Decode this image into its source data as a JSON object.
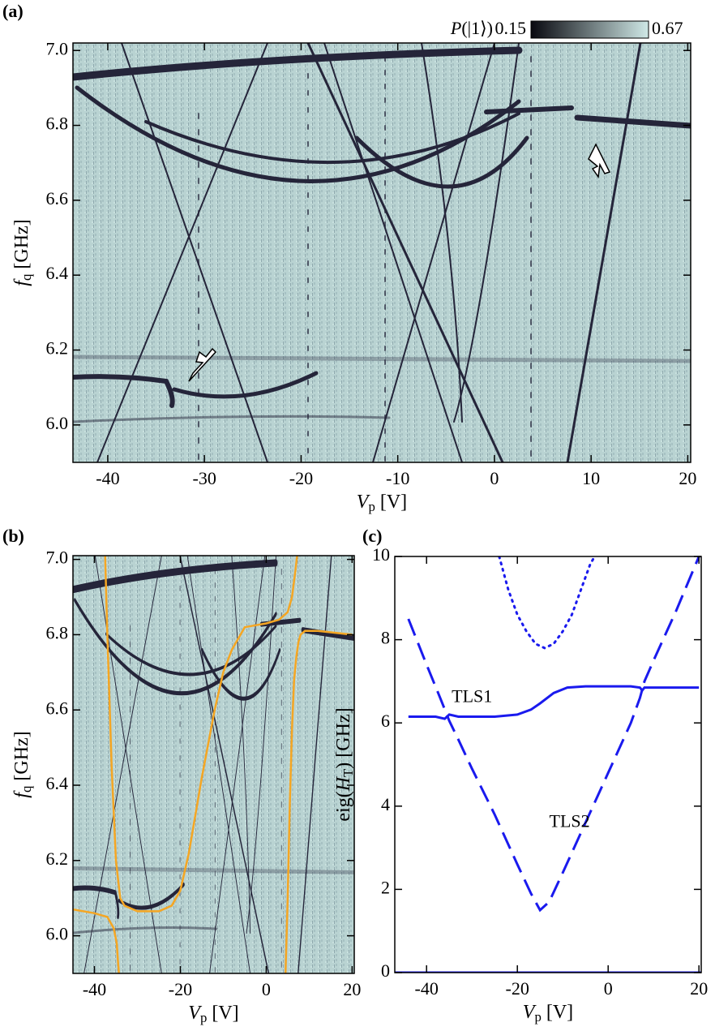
{
  "chart_data": [
    {
      "type": "heatmap",
      "panel_label": "(a)",
      "xlabel": [
        {
          "text": "V",
          "style": "italic"
        },
        {
          "text": "p",
          "style": "sub"
        },
        {
          "text": " [V]",
          "style": "normal"
        }
      ],
      "ylabel": [
        {
          "text": "f",
          "style": "italic"
        },
        {
          "text": "q",
          "style": "sub"
        },
        {
          "text": " [GHz]",
          "style": "normal"
        }
      ],
      "xlim": [
        -43.6,
        20.3
      ],
      "ylim": [
        5.9,
        7.02
      ],
      "xticks": [
        -40,
        -30,
        -20,
        -10,
        0,
        10,
        20
      ],
      "yticks": [
        {
          "value": 6,
          "label": "6.0"
        },
        6.2,
        6.4,
        6.6,
        6.8,
        {
          "value": 7,
          "label": "7.0"
        }
      ],
      "colorbar": {
        "label": [
          {
            "text": "P",
            "style": "italic"
          },
          {
            "text": "(|1⟩)",
            "style": "normal"
          }
        ],
        "ticks": [
          0.15,
          0.67
        ],
        "colors": [
          "#08080f",
          "#cfe8e6"
        ]
      }
    },
    {
      "type": "heatmap",
      "panel_label": "(b)",
      "xlabel": [
        {
          "text": "V",
          "style": "italic"
        },
        {
          "text": "p",
          "style": "sub"
        },
        {
          "text": " [V]",
          "style": "normal"
        }
      ],
      "ylabel": [
        {
          "text": "f",
          "style": "italic"
        },
        {
          "text": "q",
          "style": "sub"
        },
        {
          "text": " [GHz]",
          "style": "normal"
        }
      ],
      "xlim": [
        -45,
        20.5
      ],
      "ylim": [
        5.9,
        7.01
      ],
      "xticks": [
        -40,
        -20,
        0,
        20
      ],
      "yticks": [
        {
          "value": 6,
          "label": "6.0"
        },
        6.2,
        6.4,
        6.6,
        6.8,
        {
          "value": 7,
          "label": "7.0"
        }
      ],
      "series": [
        {
          "color": "#f5a623",
          "linestyle": "solid",
          "x": [
            -45,
            -40,
            -37,
            -35.5,
            -34.8,
            -34.5,
            -34.3
          ],
          "values": [
            6.07,
            6.06,
            6.05,
            6.02,
            5.98,
            5.93,
            5.9
          ]
        },
        {
          "color": "#f5a623",
          "linestyle": "solid",
          "x": [
            -37.5,
            -37,
            -36,
            -35,
            -34,
            -33,
            -30,
            -25,
            -22,
            -20,
            -18,
            -15,
            -12,
            -10,
            -8,
            -5,
            0,
            3,
            5,
            6,
            6.8,
            7.2
          ],
          "values": [
            7.01,
            6.8,
            6.45,
            6.2,
            6.1,
            6.08,
            6.065,
            6.065,
            6.08,
            6.12,
            6.22,
            6.42,
            6.6,
            6.7,
            6.76,
            6.82,
            6.83,
            6.84,
            6.86,
            6.9,
            6.97,
            7.01
          ]
        },
        {
          "color": "#f5a623",
          "linestyle": "solid",
          "x": [
            4.5,
            5,
            5.5,
            6,
            6.5,
            7,
            7.5,
            8,
            9,
            12,
            20
          ],
          "values": [
            5.9,
            6.1,
            6.35,
            6.55,
            6.68,
            6.74,
            6.78,
            6.8,
            6.81,
            6.81,
            6.8
          ]
        }
      ]
    },
    {
      "type": "line",
      "panel_label": "(c)",
      "xlabel": [
        {
          "text": "V",
          "style": "italic"
        },
        {
          "text": "p",
          "style": "sub"
        },
        {
          "text": " [V]",
          "style": "normal"
        }
      ],
      "ylabel": [
        {
          "text": "eig(",
          "style": "normal"
        },
        {
          "text": "H",
          "style": "italic"
        },
        {
          "text": "T",
          "style": "sub"
        },
        {
          "text": ") [GHz]",
          "style": "normal"
        }
      ],
      "xlim": [
        -47,
        20.5
      ],
      "ylim": [
        0,
        10
      ],
      "xticks": [
        -40,
        -20,
        0,
        20
      ],
      "yticks": [
        0,
        2,
        4,
        6,
        8,
        10
      ],
      "series": [
        {
          "color": "#1a1aee",
          "linestyle": "solid",
          "x": [
            -47,
            20.5
          ],
          "values": [
            0,
            0
          ]
        },
        {
          "color": "#1a1aee",
          "linestyle": "solid",
          "x": [
            -44,
            -38,
            -36,
            -35,
            -33,
            -25,
            -20,
            -17,
            -15,
            -12,
            -9,
            -5,
            0,
            5,
            7,
            7.5,
            8,
            10,
            15,
            20
          ],
          "values": [
            6.15,
            6.15,
            6.1,
            6.2,
            6.15,
            6.15,
            6.2,
            6.32,
            6.47,
            6.72,
            6.85,
            6.88,
            6.88,
            6.88,
            6.85,
            6.78,
            6.85,
            6.85,
            6.85,
            6.85
          ]
        },
        {
          "color": "#1a1aee",
          "linestyle": "dashed",
          "x": [
            -44,
            -40,
            -37,
            -35,
            -33,
            -30,
            -25,
            -20,
            -17,
            -15,
            -13,
            -10,
            -5,
            0,
            5,
            7,
            8,
            10,
            15,
            20
          ],
          "values": [
            8.5,
            7.4,
            6.6,
            6.05,
            5.6,
            4.9,
            3.8,
            2.6,
            1.9,
            1.5,
            1.7,
            2.4,
            3.6,
            4.8,
            6.0,
            6.6,
            7.0,
            7.5,
            8.7,
            10.0
          ]
        },
        {
          "color": "#1a1aee",
          "linestyle": "dotted",
          "x": [
            -24,
            -22,
            -20,
            -18,
            -16,
            -14,
            -12,
            -10,
            -8,
            -6,
            -4,
            -3
          ],
          "values": [
            10,
            9.2,
            8.6,
            8.2,
            7.9,
            7.8,
            7.9,
            8.2,
            8.6,
            9.2,
            9.8,
            10
          ]
        }
      ],
      "annotations": [
        "TLS1",
        "TLS2"
      ]
    }
  ]
}
